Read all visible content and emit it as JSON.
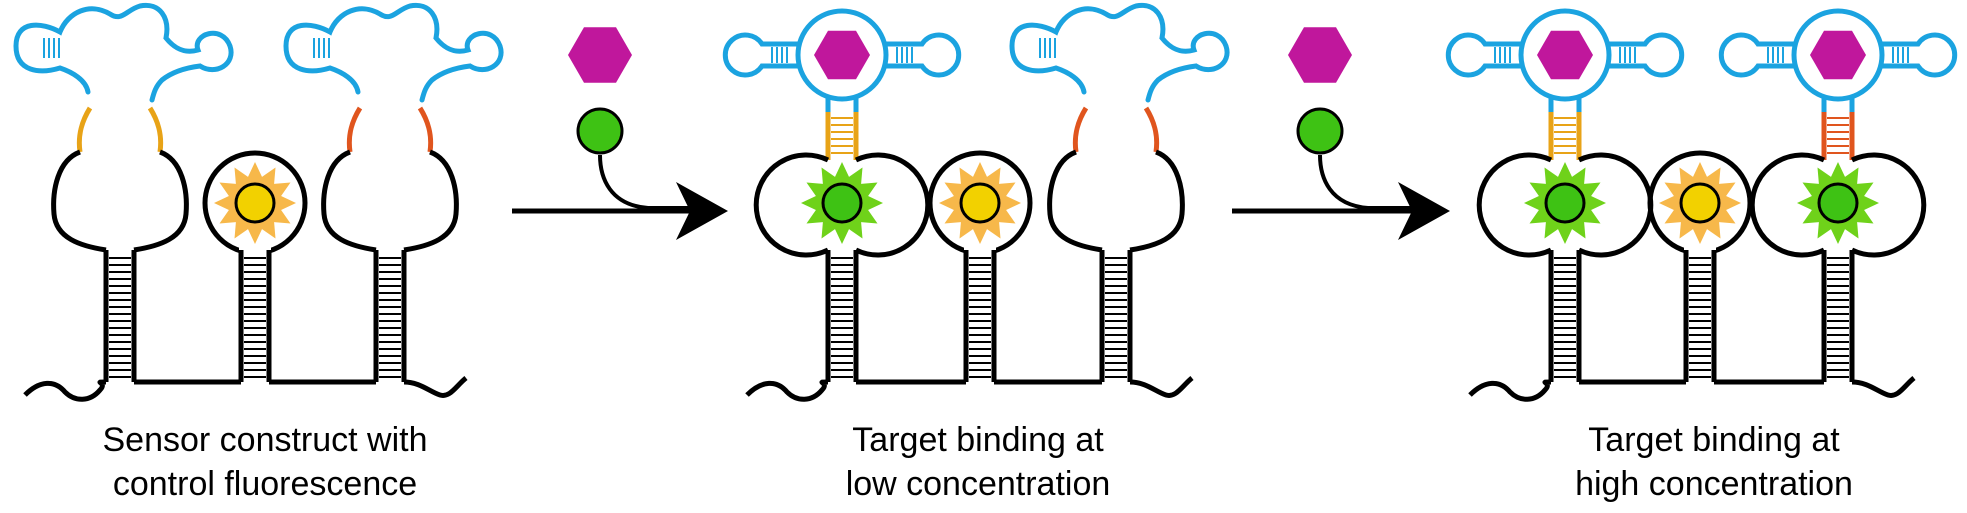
{
  "colors": {
    "aptamer": "#1ba3e0",
    "stem": "#000000",
    "linker_yellow": "#e8a317",
    "linker_orange": "#e0551e",
    "target": "#c0179c",
    "fluorophore_green": "#3ec214",
    "fluorophore_green_halo": "#6fd21a",
    "fluorophore_yellow": "#f2d100",
    "fluorophore_orange_halo": "#f7b84a",
    "arrow": "#000000"
  },
  "panels": [
    {
      "name": "panel-control",
      "caption": [
        "Sensor construct with",
        "control fluorescence"
      ],
      "sensors": [
        {
          "type": "sensor",
          "linker": "yellow",
          "bound": false
        },
        {
          "type": "control"
        },
        {
          "type": "sensor",
          "linker": "orange",
          "bound": false
        }
      ]
    },
    {
      "name": "panel-low",
      "caption": [
        "Target binding at",
        "low concentration"
      ],
      "sensors": [
        {
          "type": "sensor",
          "linker": "yellow",
          "bound": true
        },
        {
          "type": "control"
        },
        {
          "type": "sensor",
          "linker": "orange",
          "bound": false
        }
      ]
    },
    {
      "name": "panel-high",
      "caption": [
        "Target binding at",
        "high concentration"
      ],
      "sensors": [
        {
          "type": "sensor",
          "linker": "yellow",
          "bound": true
        },
        {
          "type": "control"
        },
        {
          "type": "sensor",
          "linker": "orange",
          "bound": true
        }
      ]
    }
  ],
  "steps": [
    {
      "reagents": [
        "target-hexagon",
        "green-fluorophore"
      ]
    },
    {
      "reagents": [
        "target-hexagon",
        "green-fluorophore"
      ]
    }
  ]
}
